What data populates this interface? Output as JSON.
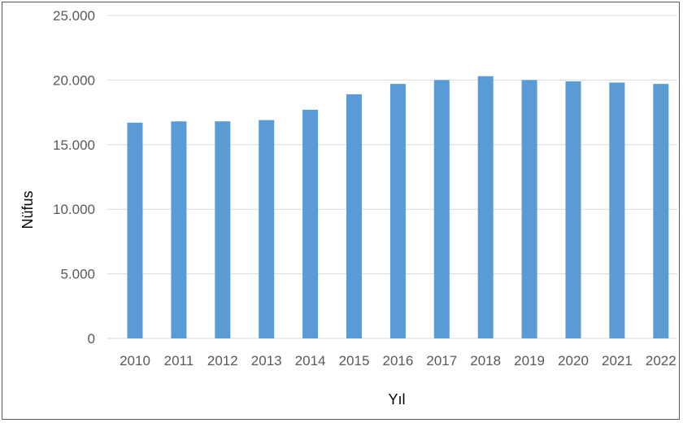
{
  "chart_data": {
    "type": "bar",
    "title": "",
    "xlabel": "Yıl",
    "ylabel": "Nüfus",
    "categories": [
      "2010",
      "2011",
      "2012",
      "2013",
      "2014",
      "2015",
      "2016",
      "2017",
      "2018",
      "2019",
      "2020",
      "2021",
      "2022"
    ],
    "values": [
      16700,
      16800,
      16800,
      16900,
      17700,
      18900,
      19700,
      20000,
      20300,
      20000,
      19900,
      19800,
      19700
    ],
    "ylim": [
      0,
      25000
    ],
    "yticks": [
      0,
      5000,
      10000,
      15000,
      20000,
      25000
    ],
    "ytick_labels": [
      "0",
      "5.000",
      "10.000",
      "15.000",
      "20.000",
      "25.000"
    ],
    "grid": true,
    "legend": "none",
    "bar_color": "#5b9bd5"
  }
}
